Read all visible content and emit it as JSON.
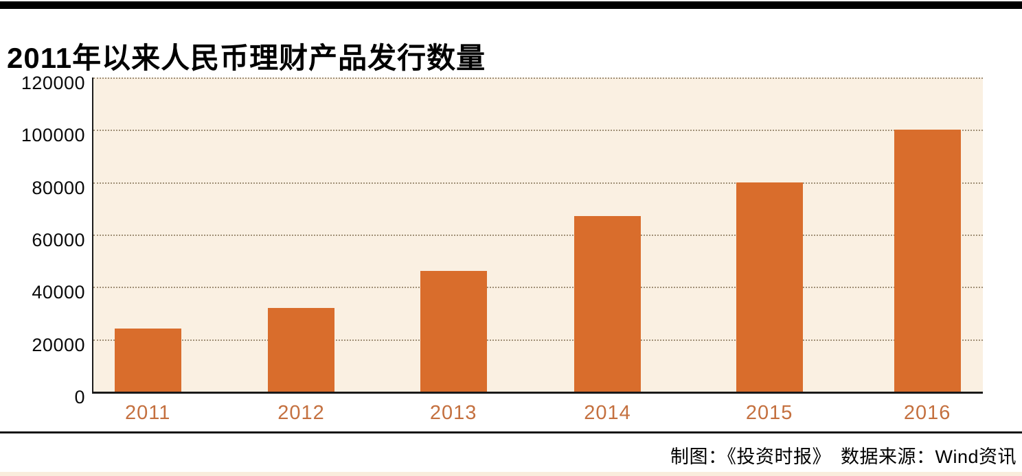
{
  "page": {
    "title": "2011年以来人民币理财产品发行数量",
    "footer_credit": "制图：《投资时报》　数据来源：Wind资讯"
  },
  "chart_data": {
    "type": "bar",
    "title": "2011年以来人民币理财产品发行数量",
    "categories": [
      "2011",
      "2012",
      "2013",
      "2014",
      "2015",
      "2016"
    ],
    "values": [
      24000,
      32000,
      46000,
      67000,
      80000,
      100000
    ],
    "xlabel": "",
    "ylabel": "",
    "ylim": [
      0,
      120000
    ],
    "yticks": [
      0,
      20000,
      40000,
      60000,
      80000,
      100000,
      120000
    ],
    "grid": "horizontal-dotted",
    "legend": "none",
    "bar_color": "#d96d2c",
    "plot_background": "#faf0e2",
    "xtick_label_color": "#c4703f",
    "ytick_label_color": "#0a0a0a",
    "axis_color": "#1a1a1a",
    "source_note": "数据来源：Wind资讯",
    "credit_note": "制图：《投资时报》"
  }
}
